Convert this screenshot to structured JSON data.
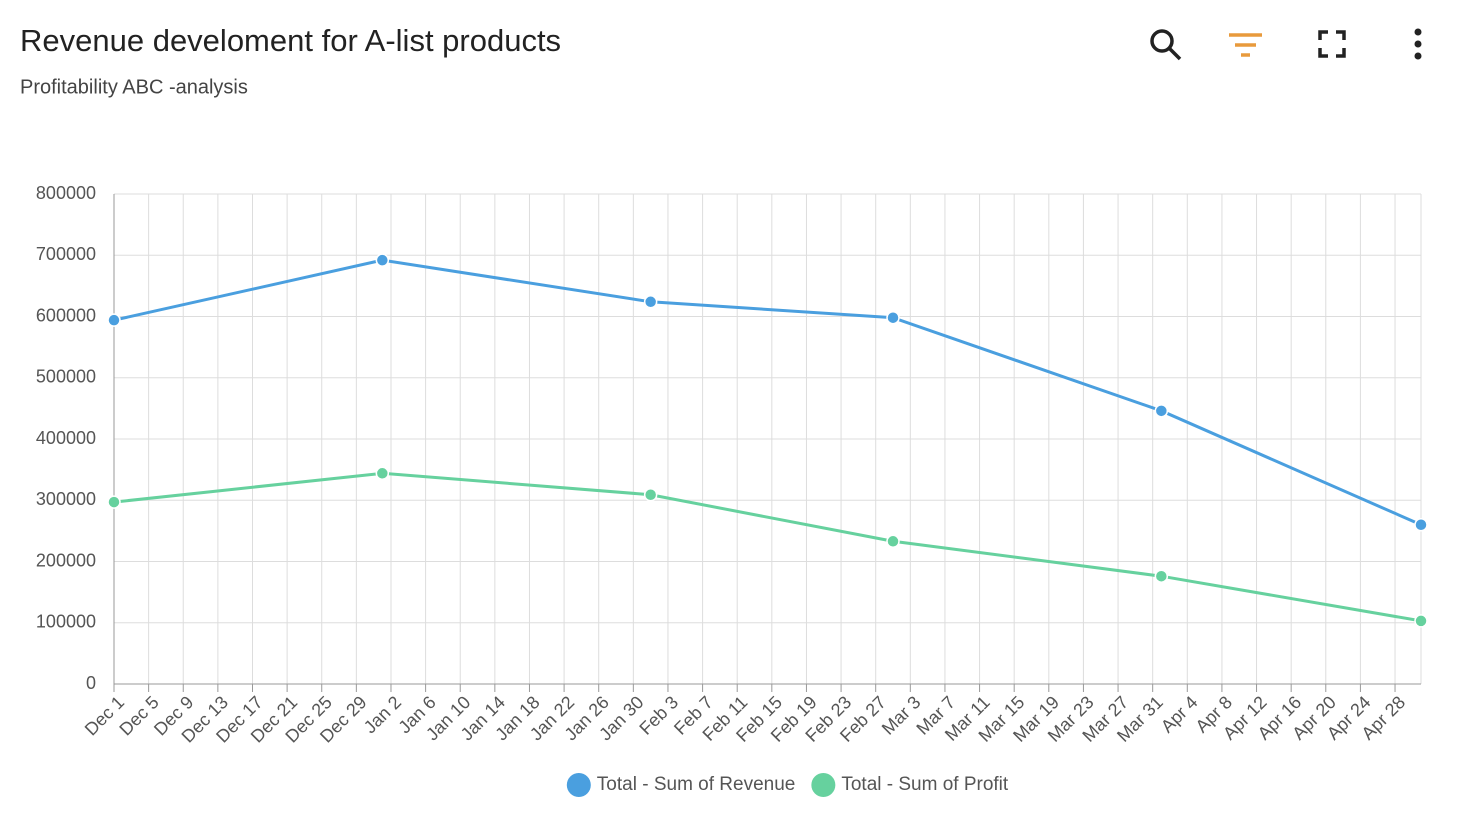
{
  "chart_data": {
    "type": "line",
    "title": "Revenue develoment for A-list products",
    "subtitle": "Profitability ABC -analysis",
    "x": [
      0,
      31,
      62,
      90,
      121,
      151
    ],
    "xlim": [
      0,
      151
    ],
    "xticks": [
      {
        "value": 0,
        "label": "Dec 1"
      },
      {
        "value": 4,
        "label": "Dec 5"
      },
      {
        "value": 8,
        "label": "Dec 9"
      },
      {
        "value": 12,
        "label": "Dec 13"
      },
      {
        "value": 16,
        "label": "Dec 17"
      },
      {
        "value": 20,
        "label": "Dec 21"
      },
      {
        "value": 24,
        "label": "Dec 25"
      },
      {
        "value": 28,
        "label": "Dec 29"
      },
      {
        "value": 32,
        "label": "Jan 2"
      },
      {
        "value": 36,
        "label": "Jan 6"
      },
      {
        "value": 40,
        "label": "Jan 10"
      },
      {
        "value": 44,
        "label": "Jan 14"
      },
      {
        "value": 48,
        "label": "Jan 18"
      },
      {
        "value": 52,
        "label": "Jan 22"
      },
      {
        "value": 56,
        "label": "Jan 26"
      },
      {
        "value": 60,
        "label": "Jan 30"
      },
      {
        "value": 64,
        "label": "Feb 3"
      },
      {
        "value": 68,
        "label": "Feb 7"
      },
      {
        "value": 72,
        "label": "Feb 11"
      },
      {
        "value": 76,
        "label": "Feb 15"
      },
      {
        "value": 80,
        "label": "Feb 19"
      },
      {
        "value": 84,
        "label": "Feb 23"
      },
      {
        "value": 88,
        "label": "Feb 27"
      },
      {
        "value": 92,
        "label": "Mar 3"
      },
      {
        "value": 96,
        "label": "Mar 7"
      },
      {
        "value": 100,
        "label": "Mar 11"
      },
      {
        "value": 104,
        "label": "Mar 15"
      },
      {
        "value": 108,
        "label": "Mar 19"
      },
      {
        "value": 112,
        "label": "Mar 23"
      },
      {
        "value": 116,
        "label": "Mar 27"
      },
      {
        "value": 120,
        "label": "Mar 31"
      },
      {
        "value": 124,
        "label": "Apr 4"
      },
      {
        "value": 128,
        "label": "Apr 8"
      },
      {
        "value": 132,
        "label": "Apr 12"
      },
      {
        "value": 136,
        "label": "Apr 16"
      },
      {
        "value": 140,
        "label": "Apr 20"
      },
      {
        "value": 144,
        "label": "Apr 24"
      },
      {
        "value": 148,
        "label": "Apr 28"
      }
    ],
    "ylim": [
      0,
      800000
    ],
    "yticks": [
      0,
      100000,
      200000,
      300000,
      400000,
      500000,
      600000,
      700000,
      800000
    ],
    "grid": true,
    "legend": "bottom",
    "series": [
      {
        "name": "Total - Sum of Revenue",
        "color": "#4a9fdf",
        "values": [
          594000,
          692000,
          624000,
          598000,
          446000,
          260000
        ]
      },
      {
        "name": "Total - Sum of Profit",
        "color": "#66d19e",
        "values": [
          297000,
          344000,
          309000,
          233000,
          176000,
          103000
        ]
      }
    ]
  }
}
